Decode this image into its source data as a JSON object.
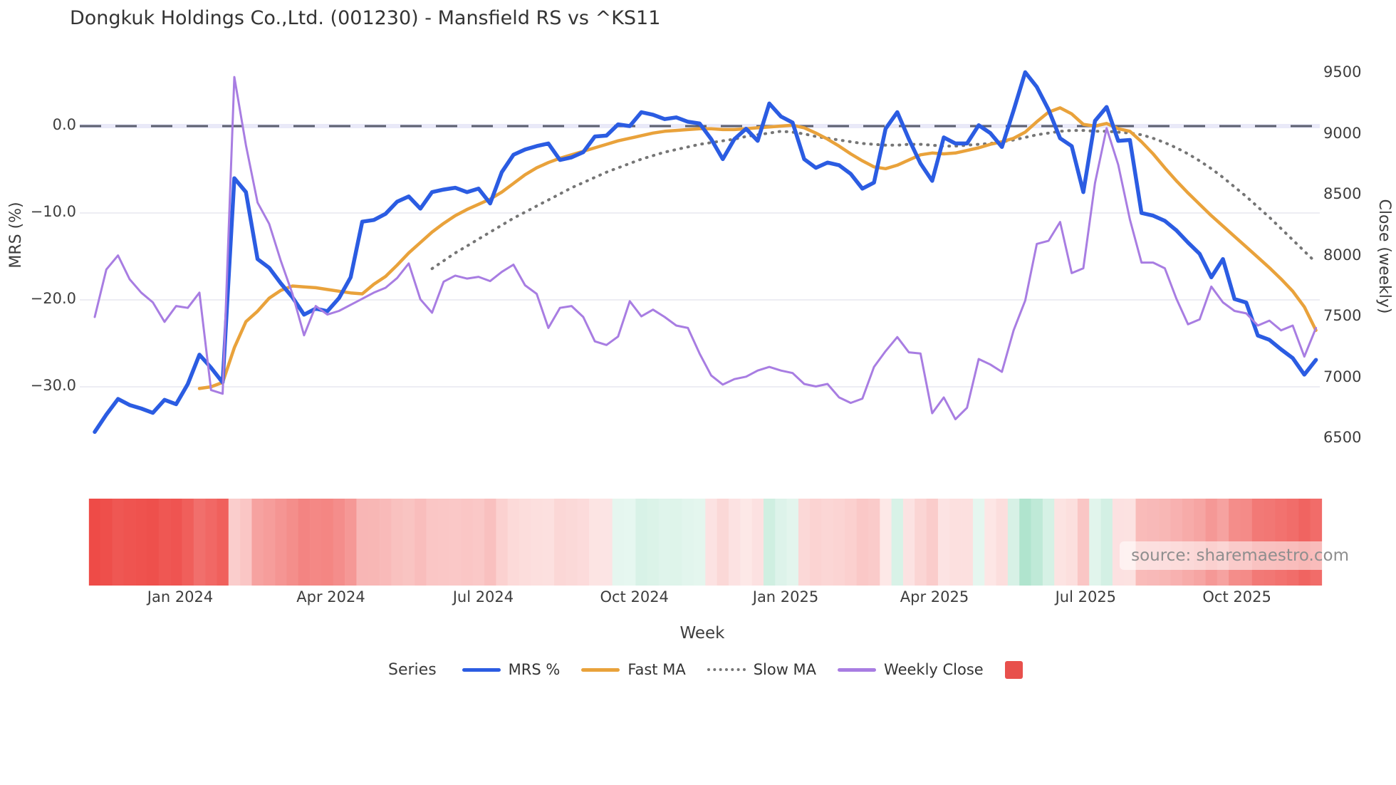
{
  "title": "Dongkuk Holdings Co.,Ltd. (001230) - Mansfield RS vs ^KS11",
  "source_text": "source: sharemaestro.com",
  "axes": {
    "left_title": "MRS (%)",
    "right_title": "Close (weekly)",
    "x_title": "Week",
    "left_ticks": [
      {
        "label": "0.0",
        "value": 0
      },
      {
        "label": "−10.0",
        "value": -10
      },
      {
        "label": "−20.0",
        "value": -20
      },
      {
        "label": "−30.0",
        "value": -30
      }
    ],
    "right_ticks": [
      {
        "label": "9500",
        "value": 9500
      },
      {
        "label": "9000",
        "value": 9000
      },
      {
        "label": "8500",
        "value": 8500
      },
      {
        "label": "8000",
        "value": 8000
      },
      {
        "label": "7500",
        "value": 7500
      },
      {
        "label": "7000",
        "value": 7000
      },
      {
        "label": "6500",
        "value": 6500
      }
    ],
    "x_ticks": [
      {
        "label": "Jan 2024",
        "week": 7.35
      },
      {
        "label": "Apr 2024",
        "week": 20.3
      },
      {
        "label": "Jul 2024",
        "week": 33.4
      },
      {
        "label": "Oct 2024",
        "week": 46.4
      },
      {
        "label": "Jan 2025",
        "week": 59.4
      },
      {
        "label": "Apr 2025",
        "week": 72.2
      },
      {
        "label": "Jul 2025",
        "week": 85.2
      },
      {
        "label": "Oct 2025",
        "week": 98.2
      }
    ]
  },
  "legend": {
    "group_label": "Series",
    "items": [
      {
        "label": "MRS %",
        "marker": "line",
        "color": "#2b5ce2"
      },
      {
        "label": "Fast MA",
        "marker": "line",
        "color": "#e9a23b"
      },
      {
        "label": "Slow MA",
        "marker": "dotted",
        "color": "#757575"
      },
      {
        "label": "Weekly Close",
        "marker": "line",
        "color": "#a87de2"
      },
      {
        "label": "",
        "marker": "square",
        "color": "#e8504c"
      }
    ]
  },
  "colors": {
    "mrs": "#2b5ce2",
    "fast_ma": "#e9a23b",
    "slow_ma": "#757575",
    "weekly_close": "#a87de2",
    "zero_dash": "#5a5e6e",
    "zero_band": "#e9e9f8",
    "gridline": "#ededf3",
    "heat_red": "#ee4b47",
    "heat_green": "#8fd9b9"
  },
  "chart_data": {
    "type": "line",
    "title": "Dongkuk Holdings Co.,Ltd. (001230) - Mansfield RS vs ^KS11",
    "xlabel": "Week",
    "ylabel_left": "MRS (%)",
    "ylabel_right": "Close (weekly)",
    "ylim_left": [
      -37.5,
      9.5
    ],
    "ylim_right": [
      6400,
      9750
    ],
    "zero_line_left": 0.0,
    "grid": true,
    "legend_position": "bottom",
    "n_weeks": 106,
    "series": [
      {
        "name": "MRS %",
        "axis": "left",
        "style": "solid",
        "values": [
          -35.2,
          -33.2,
          -31.4,
          -32.1,
          -32.5,
          -33.0,
          -31.5,
          -32.0,
          -29.7,
          -26.3,
          -27.8,
          -29.5,
          -6.0,
          -7.6,
          -15.3,
          -16.3,
          -18.1,
          -19.7,
          -21.7,
          -21.0,
          -21.3,
          -19.8,
          -17.4,
          -11.0,
          -10.8,
          -10.1,
          -8.7,
          -8.1,
          -9.5,
          -7.6,
          -7.3,
          -7.1,
          -7.6,
          -7.2,
          -8.9,
          -5.3,
          -3.3,
          -2.7,
          -2.3,
          -2.0,
          -3.9,
          -3.6,
          -3.0,
          -1.2,
          -1.1,
          0.2,
          0.0,
          1.6,
          1.3,
          0.8,
          1.0,
          0.5,
          0.3,
          -1.5,
          -3.8,
          -1.5,
          -0.3,
          -1.7,
          2.6,
          1.1,
          0.4,
          -3.8,
          -4.8,
          -4.2,
          -4.5,
          -5.5,
          -7.2,
          -6.5,
          -0.3,
          1.6,
          -1.5,
          -4.3,
          -6.3,
          -1.3,
          -2.0,
          -2.0,
          0.1,
          -0.8,
          -2.4,
          1.8,
          6.2,
          4.5,
          1.9,
          -1.4,
          -2.3,
          -7.6,
          0.6,
          2.2,
          -1.7,
          -1.6,
          -10.0,
          -10.3,
          -10.9,
          -12.0,
          -13.4,
          -14.7,
          -17.4,
          -15.3,
          -19.9,
          -20.3,
          -24.1,
          -24.6,
          -25.7,
          -26.7,
          -28.6,
          -26.9
        ]
      },
      {
        "name": "Fast MA",
        "axis": "left",
        "style": "solid",
        "values": [
          null,
          null,
          null,
          null,
          null,
          null,
          null,
          null,
          null,
          -30.2,
          -30.0,
          -29.5,
          -25.5,
          -22.5,
          -21.3,
          -19.8,
          -18.9,
          -18.4,
          -18.5,
          -18.6,
          -18.8,
          -19.0,
          -19.2,
          -19.3,
          -18.2,
          -17.3,
          -16.0,
          -14.6,
          -13.4,
          -12.2,
          -11.2,
          -10.3,
          -9.6,
          -9.0,
          -8.4,
          -7.6,
          -6.6,
          -5.6,
          -4.8,
          -4.2,
          -3.7,
          -3.3,
          -2.9,
          -2.5,
          -2.1,
          -1.7,
          -1.4,
          -1.1,
          -0.8,
          -0.6,
          -0.5,
          -0.4,
          -0.3,
          -0.3,
          -0.4,
          -0.4,
          -0.3,
          -0.2,
          -0.1,
          0.0,
          0.1,
          -0.2,
          -0.8,
          -1.5,
          -2.3,
          -3.2,
          -4.0,
          -4.7,
          -4.9,
          -4.5,
          -3.9,
          -3.3,
          -3.1,
          -3.2,
          -3.1,
          -2.8,
          -2.5,
          -2.1,
          -1.8,
          -1.4,
          -0.7,
          0.5,
          1.6,
          2.1,
          1.4,
          0.2,
          0.0,
          0.3,
          -0.3,
          -0.6,
          -1.8,
          -3.2,
          -4.8,
          -6.3,
          -7.7,
          -9.0,
          -10.3,
          -11.5,
          -12.7,
          -13.9,
          -15.1,
          -16.3,
          -17.6,
          -19.0,
          -20.8,
          -23.5
        ]
      },
      {
        "name": "Slow MA",
        "axis": "left",
        "style": "dotted",
        "values": [
          null,
          null,
          null,
          null,
          null,
          null,
          null,
          null,
          null,
          null,
          null,
          null,
          null,
          null,
          null,
          null,
          null,
          null,
          null,
          null,
          null,
          null,
          null,
          null,
          null,
          null,
          null,
          null,
          null,
          -16.4,
          -15.5,
          -14.6,
          -13.8,
          -13.0,
          -12.2,
          -11.4,
          -10.6,
          -9.9,
          -9.2,
          -8.5,
          -7.8,
          -7.1,
          -6.5,
          -5.9,
          -5.3,
          -4.8,
          -4.3,
          -3.8,
          -3.4,
          -3.0,
          -2.7,
          -2.4,
          -2.1,
          -1.9,
          -1.7,
          -1.5,
          -1.2,
          -1.0,
          -0.8,
          -0.6,
          -0.7,
          -0.9,
          -1.2,
          -1.4,
          -1.6,
          -1.8,
          -2.0,
          -2.1,
          -2.2,
          -2.2,
          -2.1,
          -2.1,
          -2.2,
          -2.3,
          -2.3,
          -2.2,
          -2.1,
          -2.0,
          -1.8,
          -1.6,
          -1.3,
          -1.0,
          -0.8,
          -0.6,
          -0.5,
          -0.5,
          -0.6,
          -0.6,
          -0.7,
          -0.8,
          -1.0,
          -1.4,
          -1.9,
          -2.5,
          -3.2,
          -4.0,
          -4.9,
          -5.9,
          -7.0,
          -8.1,
          -9.3,
          -10.5,
          -11.8,
          -13.1,
          -14.4,
          -15.7
        ]
      },
      {
        "name": "Weekly Close",
        "axis": "right",
        "style": "solid",
        "values": [
          7500,
          7890,
          8005,
          7810,
          7700,
          7620,
          7460,
          7590,
          7575,
          7700,
          6900,
          6870,
          9470,
          8910,
          8440,
          8265,
          7960,
          7690,
          7350,
          7590,
          7520,
          7550,
          7600,
          7650,
          7700,
          7740,
          7820,
          7940,
          7645,
          7535,
          7790,
          7840,
          7815,
          7830,
          7795,
          7870,
          7930,
          7760,
          7690,
          7410,
          7575,
          7590,
          7500,
          7300,
          7270,
          7340,
          7630,
          7505,
          7560,
          7500,
          7430,
          7410,
          7200,
          7020,
          6945,
          6990,
          7010,
          7060,
          7090,
          7060,
          7040,
          6950,
          6930,
          6950,
          6840,
          6795,
          6830,
          7090,
          7220,
          7335,
          7210,
          7200,
          6710,
          6840,
          6660,
          6755,
          7155,
          7110,
          7050,
          7390,
          7635,
          8100,
          8125,
          8280,
          7860,
          7900,
          8600,
          9050,
          8750,
          8300,
          7947,
          7947,
          7900,
          7650,
          7440,
          7480,
          7750,
          7620,
          7550,
          7530,
          7430,
          7470,
          7390,
          7430,
          7175,
          7410
        ]
      }
    ],
    "heatmap_strip": {
      "description": "weekly relative-strength heat cells below chart, red = negative MRS, green = positive MRS",
      "derived_from": "MRS %"
    }
  }
}
